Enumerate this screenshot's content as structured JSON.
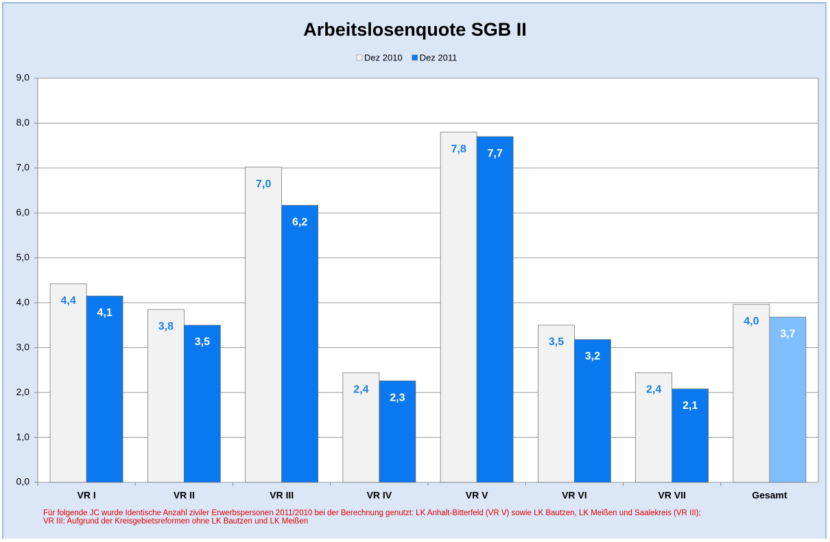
{
  "chart_data": {
    "type": "bar",
    "title": "Arbeitslosenquote SGB II",
    "categories": [
      "VR I",
      "VR II",
      "VR III",
      "VR IV",
      "VR V",
      "VR VI",
      "VR VII",
      "Gesamt"
    ],
    "series": [
      {
        "name": "Dez 2010",
        "color": "#f2f2f2",
        "label_color": "#1a7fe6",
        "values": [
          4.42,
          3.85,
          7.02,
          2.44,
          7.8,
          3.5,
          2.44,
          3.96
        ],
        "value_labels": [
          "4,4",
          "3,8",
          "7,0",
          "2,4",
          "7,8",
          "3,5",
          "2,4",
          "4,0"
        ]
      },
      {
        "name": "Dez 2011",
        "color": "#0a78ee",
        "label_color": "#ffffff",
        "colors": [
          "#0a78ee",
          "#0a78ee",
          "#0a78ee",
          "#0a78ee",
          "#0a78ee",
          "#0a78ee",
          "#0a78ee",
          "#80bfff"
        ],
        "values": [
          4.15,
          3.5,
          6.17,
          2.26,
          7.7,
          3.18,
          2.08,
          3.68
        ],
        "value_labels": [
          "4,1",
          "3,5",
          "6,2",
          "2,3",
          "7,7",
          "3,2",
          "2,1",
          "3,7"
        ]
      }
    ],
    "ylim": [
      0,
      9
    ],
    "yticks": [
      {
        "value": 0,
        "label": "0,0"
      },
      {
        "value": 1,
        "label": "1,0"
      },
      {
        "value": 2,
        "label": "2,0"
      },
      {
        "value": 3,
        "label": "3,0"
      },
      {
        "value": 4,
        "label": "4,0"
      },
      {
        "value": 5,
        "label": "5,0"
      },
      {
        "value": 6,
        "label": "6,0"
      },
      {
        "value": 7,
        "label": "7,0"
      },
      {
        "value": 8,
        "label": "8,0"
      },
      {
        "value": 9,
        "label": "9,0"
      }
    ],
    "grid": true,
    "footnote": [
      "Für folgende JC wurde Identische Anzahl ziviler Erwerbspersonen 2011/2010 bei der Berechnung genutzt: LK Anhalt-Bitterfeld (VR V) sowie LK Bautzen, LK Meißen und Saalekreis (VR III);",
      "VR III:  Aufgrund der Kreisgebietsreformen ohne  LK Bautzen und LK Meißen"
    ]
  }
}
